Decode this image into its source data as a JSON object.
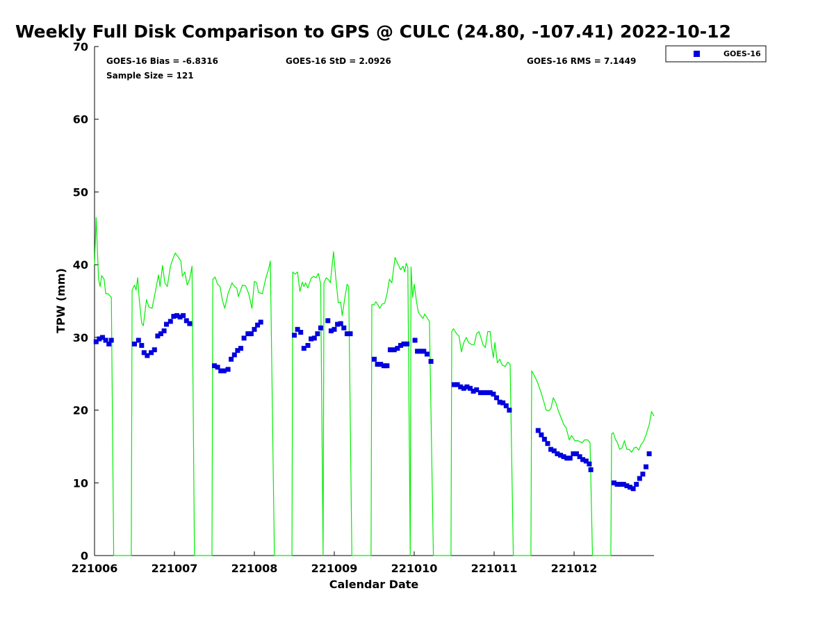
{
  "chart_data": {
    "type": "scatter",
    "title": "Weekly Full Disk Comparison to GPS @ CULC (24.80, -107.41) 2022-10-12",
    "xlabel": "Calendar Date",
    "ylabel": "TPW (mm)",
    "ylim": [
      0,
      70
    ],
    "xlim": [
      0,
      7
    ],
    "yticks": [
      0,
      10,
      20,
      30,
      40,
      50,
      60,
      70
    ],
    "xtick_positions": [
      0,
      1,
      2,
      3,
      4,
      5,
      6
    ],
    "xtick_labels": [
      "221006",
      "221007",
      "221008",
      "221009",
      "221010",
      "221011",
      "221012"
    ],
    "stats": {
      "bias": "GOES-16 Bias = -6.8316",
      "std": "GOES-16 StD = 2.0926",
      "rms": "GOES-16 RMS = 7.1449",
      "sample": "Sample Size = 121"
    },
    "legend": [
      {
        "name": "GOES-16",
        "color": "#0000dd",
        "marker": "square"
      }
    ],
    "series": [
      {
        "name": "GOES-16",
        "type": "scatter",
        "color": "#0000dd",
        "points": [
          [
            0.02,
            29.4
          ],
          [
            0.06,
            29.8
          ],
          [
            0.1,
            30.0
          ],
          [
            0.14,
            29.6
          ],
          [
            0.18,
            29.1
          ],
          [
            0.21,
            29.6
          ],
          [
            0.5,
            29.1
          ],
          [
            0.55,
            29.6
          ],
          [
            0.59,
            28.9
          ],
          [
            0.62,
            27.9
          ],
          [
            0.66,
            27.5
          ],
          [
            0.71,
            27.9
          ],
          [
            0.75,
            28.3
          ],
          [
            0.79,
            30.2
          ],
          [
            0.83,
            30.5
          ],
          [
            0.87,
            30.9
          ],
          [
            0.9,
            31.8
          ],
          [
            0.95,
            32.2
          ],
          [
            0.99,
            32.9
          ],
          [
            1.03,
            33.0
          ],
          [
            1.07,
            32.8
          ],
          [
            1.11,
            33.0
          ],
          [
            1.15,
            32.3
          ],
          [
            1.19,
            31.9
          ],
          [
            1.5,
            26.1
          ],
          [
            1.54,
            25.9
          ],
          [
            1.58,
            25.4
          ],
          [
            1.62,
            25.4
          ],
          [
            1.67,
            25.6
          ],
          [
            1.71,
            27.0
          ],
          [
            1.75,
            27.6
          ],
          [
            1.79,
            28.2
          ],
          [
            1.83,
            28.5
          ],
          [
            1.87,
            29.9
          ],
          [
            1.92,
            30.5
          ],
          [
            1.96,
            30.5
          ],
          [
            2.0,
            31.1
          ],
          [
            2.04,
            31.7
          ],
          [
            2.08,
            32.1
          ],
          [
            2.5,
            30.3
          ],
          [
            2.54,
            31.1
          ],
          [
            2.58,
            30.7
          ],
          [
            2.62,
            28.5
          ],
          [
            2.67,
            28.9
          ],
          [
            2.71,
            29.8
          ],
          [
            2.75,
            29.9
          ],
          [
            2.79,
            30.5
          ],
          [
            2.83,
            31.3
          ],
          [
            2.92,
            32.3
          ],
          [
            2.96,
            30.9
          ],
          [
            3.0,
            31.1
          ],
          [
            3.04,
            31.8
          ],
          [
            3.08,
            31.9
          ],
          [
            3.12,
            31.3
          ],
          [
            3.16,
            30.5
          ],
          [
            3.2,
            30.5
          ],
          [
            3.5,
            27.0
          ],
          [
            3.54,
            26.3
          ],
          [
            3.58,
            26.3
          ],
          [
            3.62,
            26.1
          ],
          [
            3.66,
            26.1
          ],
          [
            3.7,
            28.3
          ],
          [
            3.75,
            28.3
          ],
          [
            3.79,
            28.5
          ],
          [
            3.83,
            28.9
          ],
          [
            3.87,
            29.1
          ],
          [
            3.91,
            29.1
          ],
          [
            4.01,
            29.6
          ],
          [
            4.04,
            28.1
          ],
          [
            4.08,
            28.1
          ],
          [
            4.12,
            28.1
          ],
          [
            4.16,
            27.7
          ],
          [
            4.21,
            26.7
          ],
          [
            4.5,
            23.5
          ],
          [
            4.54,
            23.5
          ],
          [
            4.58,
            23.2
          ],
          [
            4.62,
            23.0
          ],
          [
            4.66,
            23.2
          ],
          [
            4.7,
            23.0
          ],
          [
            4.74,
            22.6
          ],
          [
            4.78,
            22.8
          ],
          [
            4.83,
            22.4
          ],
          [
            4.87,
            22.4
          ],
          [
            4.91,
            22.4
          ],
          [
            4.95,
            22.4
          ],
          [
            4.99,
            22.2
          ],
          [
            5.03,
            21.7
          ],
          [
            5.07,
            21.1
          ],
          [
            5.11,
            21.0
          ],
          [
            5.15,
            20.6
          ],
          [
            5.19,
            20.0
          ],
          [
            5.55,
            17.2
          ],
          [
            5.59,
            16.6
          ],
          [
            5.63,
            16.0
          ],
          [
            5.67,
            15.4
          ],
          [
            5.71,
            14.6
          ],
          [
            5.75,
            14.4
          ],
          [
            5.79,
            14.0
          ],
          [
            5.83,
            13.8
          ],
          [
            5.87,
            13.6
          ],
          [
            5.91,
            13.4
          ],
          [
            5.95,
            13.4
          ],
          [
            5.99,
            14.0
          ],
          [
            6.03,
            14.0
          ],
          [
            6.07,
            13.6
          ],
          [
            6.11,
            13.2
          ],
          [
            6.15,
            13.0
          ],
          [
            6.19,
            12.6
          ],
          [
            6.21,
            11.8
          ],
          [
            6.5,
            10.0
          ],
          [
            6.54,
            9.8
          ],
          [
            6.58,
            9.8
          ],
          [
            6.62,
            9.8
          ],
          [
            6.66,
            9.6
          ],
          [
            6.7,
            9.4
          ],
          [
            6.74,
            9.2
          ],
          [
            6.78,
            9.8
          ],
          [
            6.82,
            10.6
          ],
          [
            6.86,
            11.2
          ],
          [
            6.9,
            12.2
          ],
          [
            6.94,
            14.0
          ]
        ]
      },
      {
        "name": "GPS",
        "type": "line",
        "color": "#00ee00",
        "points": [
          [
            0.0,
            40.0
          ],
          [
            0.02,
            46.5
          ],
          [
            0.05,
            38.0
          ],
          [
            0.07,
            37.0
          ],
          [
            0.09,
            38.5
          ],
          [
            0.12,
            38.0
          ],
          [
            0.14,
            36.0
          ],
          [
            0.17,
            36.0
          ],
          [
            0.21,
            35.5
          ],
          [
            0.24,
            0
          ],
          [
            0.46,
            0
          ],
          [
            0.47,
            36.5
          ],
          [
            0.5,
            37.2
          ],
          [
            0.52,
            36.5
          ],
          [
            0.54,
            38.2
          ],
          [
            0.56,
            35.2
          ],
          [
            0.59,
            32.0
          ],
          [
            0.61,
            31.6
          ],
          [
            0.65,
            35.2
          ],
          [
            0.68,
            34.2
          ],
          [
            0.72,
            34.0
          ],
          [
            0.76,
            36.2
          ],
          [
            0.8,
            38.6
          ],
          [
            0.82,
            37.0
          ],
          [
            0.85,
            39.9
          ],
          [
            0.88,
            37.5
          ],
          [
            0.91,
            37.0
          ],
          [
            0.95,
            39.8
          ],
          [
            0.98,
            40.8
          ],
          [
            1.01,
            41.6
          ],
          [
            1.05,
            41.0
          ],
          [
            1.08,
            40.5
          ],
          [
            1.1,
            38.4
          ],
          [
            1.13,
            39.0
          ],
          [
            1.16,
            37.2
          ],
          [
            1.19,
            38.0
          ],
          [
            1.22,
            39.8
          ],
          [
            1.25,
            0
          ],
          [
            1.47,
            0
          ],
          [
            1.48,
            38.0
          ],
          [
            1.51,
            38.3
          ],
          [
            1.54,
            37.3
          ],
          [
            1.57,
            37.0
          ],
          [
            1.6,
            35.1
          ],
          [
            1.63,
            34.0
          ],
          [
            1.67,
            36.0
          ],
          [
            1.72,
            37.5
          ],
          [
            1.75,
            37.0
          ],
          [
            1.78,
            36.8
          ],
          [
            1.8,
            35.6
          ],
          [
            1.85,
            37.2
          ],
          [
            1.89,
            37.1
          ],
          [
            1.93,
            36.0
          ],
          [
            1.97,
            34.0
          ],
          [
            2.0,
            37.7
          ],
          [
            2.03,
            37.5
          ],
          [
            2.05,
            36.2
          ],
          [
            2.1,
            36.0
          ],
          [
            2.14,
            38.0
          ],
          [
            2.18,
            39.5
          ],
          [
            2.2,
            40.5
          ],
          [
            2.25,
            0
          ],
          [
            2.47,
            0
          ],
          [
            2.48,
            39.0
          ],
          [
            2.51,
            38.7
          ],
          [
            2.54,
            39.0
          ],
          [
            2.57,
            36.3
          ],
          [
            2.6,
            37.6
          ],
          [
            2.62,
            37.0
          ],
          [
            2.64,
            37.5
          ],
          [
            2.67,
            36.8
          ],
          [
            2.71,
            38.1
          ],
          [
            2.74,
            38.4
          ],
          [
            2.77,
            38.2
          ],
          [
            2.8,
            38.8
          ],
          [
            2.83,
            37.4
          ],
          [
            2.86,
            0
          ],
          [
            2.87,
            37.5
          ],
          [
            2.9,
            38.2
          ],
          [
            2.93,
            37.9
          ],
          [
            2.95,
            37.5
          ],
          [
            2.99,
            41.8
          ],
          [
            3.02,
            38.0
          ],
          [
            3.05,
            34.8
          ],
          [
            3.08,
            34.8
          ],
          [
            3.1,
            33.0
          ],
          [
            3.13,
            35.3
          ],
          [
            3.16,
            37.3
          ],
          [
            3.18,
            37.0
          ],
          [
            3.22,
            0
          ],
          [
            3.46,
            0
          ],
          [
            3.47,
            34.5
          ],
          [
            3.5,
            34.5
          ],
          [
            3.52,
            34.9
          ],
          [
            3.55,
            34.4
          ],
          [
            3.57,
            34.0
          ],
          [
            3.6,
            34.6
          ],
          [
            3.63,
            34.7
          ],
          [
            3.66,
            36.0
          ],
          [
            3.69,
            38.0
          ],
          [
            3.72,
            37.5
          ],
          [
            3.76,
            41.0
          ],
          [
            3.8,
            40.0
          ],
          [
            3.83,
            39.3
          ],
          [
            3.86,
            39.8
          ],
          [
            3.88,
            39.0
          ],
          [
            3.9,
            40.2
          ],
          [
            3.92,
            39.6
          ],
          [
            3.95,
            0
          ],
          [
            3.96,
            39.7
          ],
          [
            3.98,
            35.5
          ],
          [
            4.0,
            37.3
          ],
          [
            4.03,
            34.8
          ],
          [
            4.05,
            33.5
          ],
          [
            4.08,
            33.0
          ],
          [
            4.11,
            32.6
          ],
          [
            4.13,
            33.2
          ],
          [
            4.16,
            32.7
          ],
          [
            4.19,
            32.2
          ],
          [
            4.24,
            0
          ],
          [
            4.46,
            0
          ],
          [
            4.47,
            30.8
          ],
          [
            4.49,
            31.2
          ],
          [
            4.53,
            30.5
          ],
          [
            4.56,
            30.2
          ],
          [
            4.59,
            28.0
          ],
          [
            4.62,
            29.3
          ],
          [
            4.65,
            30.0
          ],
          [
            4.68,
            29.3
          ],
          [
            4.72,
            29.0
          ],
          [
            4.75,
            29.0
          ],
          [
            4.78,
            30.5
          ],
          [
            4.81,
            30.8
          ],
          [
            4.84,
            29.8
          ],
          [
            4.86,
            29.0
          ],
          [
            4.89,
            28.6
          ],
          [
            4.92,
            30.8
          ],
          [
            4.95,
            30.8
          ],
          [
            4.97,
            28.7
          ],
          [
            4.99,
            27.2
          ],
          [
            5.01,
            29.3
          ],
          [
            5.04,
            26.5
          ],
          [
            5.07,
            27.0
          ],
          [
            5.1,
            26.2
          ],
          [
            5.14,
            26.0
          ],
          [
            5.17,
            26.6
          ],
          [
            5.2,
            26.3
          ],
          [
            5.24,
            0
          ],
          [
            5.46,
            0
          ],
          [
            5.47,
            25.4
          ],
          [
            5.51,
            24.6
          ],
          [
            5.55,
            23.6
          ],
          [
            5.59,
            22.3
          ],
          [
            5.62,
            21.2
          ],
          [
            5.65,
            20.0
          ],
          [
            5.68,
            19.9
          ],
          [
            5.71,
            20.2
          ],
          [
            5.74,
            21.7
          ],
          [
            5.77,
            21.1
          ],
          [
            5.8,
            20.0
          ],
          [
            5.84,
            18.9
          ],
          [
            5.87,
            18.0
          ],
          [
            5.9,
            17.6
          ],
          [
            5.94,
            15.9
          ],
          [
            5.97,
            16.5
          ],
          [
            6.01,
            15.8
          ],
          [
            6.05,
            15.8
          ],
          [
            6.1,
            15.5
          ],
          [
            6.13,
            15.9
          ],
          [
            6.17,
            15.9
          ],
          [
            6.2,
            15.5
          ],
          [
            6.23,
            0
          ],
          [
            6.46,
            0
          ],
          [
            6.47,
            16.7
          ],
          [
            6.49,
            16.9
          ],
          [
            6.52,
            15.9
          ],
          [
            6.54,
            15.6
          ],
          [
            6.57,
            14.6
          ],
          [
            6.6,
            14.8
          ],
          [
            6.63,
            15.8
          ],
          [
            6.66,
            14.6
          ],
          [
            6.69,
            14.6
          ],
          [
            6.72,
            14.2
          ],
          [
            6.75,
            14.8
          ],
          [
            6.78,
            14.9
          ],
          [
            6.81,
            14.5
          ],
          [
            6.84,
            15.3
          ],
          [
            6.87,
            15.7
          ],
          [
            6.9,
            16.6
          ],
          [
            6.94,
            18.0
          ],
          [
            6.97,
            19.8
          ],
          [
            7.0,
            19.2
          ]
        ]
      }
    ]
  }
}
